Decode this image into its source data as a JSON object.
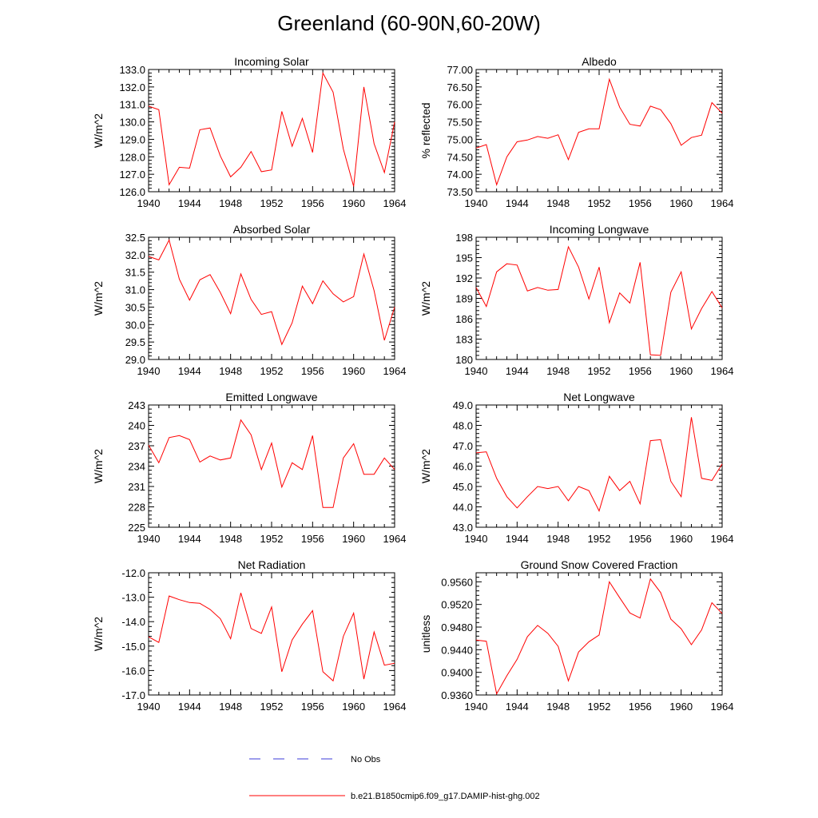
{
  "title": "Greenland (60-90N,60-20W)",
  "legend": [
    {
      "label": "No Obs",
      "color": "#3b3bd9",
      "style": "dashed"
    },
    {
      "label": "b.e21.B1850cmip6.f09_g17.DAMIP-hist-ghg.002",
      "color": "#ff0000",
      "style": "solid"
    }
  ],
  "chart_data": [
    {
      "type": "line",
      "title": "Incoming Solar",
      "ylabel": "W/m^2",
      "xlim": [
        1940,
        1964
      ],
      "ylim": [
        126,
        133
      ],
      "xticks": [
        "1940",
        "1944",
        "1948",
        "1952",
        "1956",
        "1960",
        "1964"
      ],
      "yticks": [
        "126.0",
        "127.0",
        "128.0",
        "129.0",
        "130.0",
        "131.0",
        "132.0",
        "133.0"
      ],
      "x": [
        1940,
        1941,
        1942,
        1943,
        1944,
        1945,
        1946,
        1947,
        1948,
        1949,
        1950,
        1951,
        1952,
        1953,
        1954,
        1955,
        1956,
        1957,
        1958,
        1959,
        1960,
        1961,
        1962,
        1963,
        1964
      ],
      "series": [
        {
          "values": [
            130.9,
            130.7,
            126.4,
            127.4,
            127.35,
            129.55,
            129.65,
            128.05,
            126.85,
            127.4,
            128.3,
            127.15,
            127.25,
            130.6,
            128.6,
            130.2,
            128.25,
            132.8,
            131.7,
            128.45,
            126.3,
            132.0,
            128.75,
            127.1,
            130.0
          ]
        }
      ]
    },
    {
      "type": "line",
      "title": "Albedo",
      "ylabel": "% reflected",
      "xlim": [
        1940,
        1964
      ],
      "ylim": [
        73.5,
        77
      ],
      "xticks": [
        "1940",
        "1944",
        "1948",
        "1952",
        "1956",
        "1960",
        "1964"
      ],
      "yticks": [
        "73.50",
        "74.00",
        "74.50",
        "75.00",
        "75.50",
        "76.00",
        "76.50",
        "77.00"
      ],
      "x": [
        1940,
        1941,
        1942,
        1943,
        1944,
        1945,
        1946,
        1947,
        1948,
        1949,
        1950,
        1951,
        1952,
        1953,
        1954,
        1955,
        1956,
        1957,
        1958,
        1959,
        1960,
        1961,
        1962,
        1963,
        1964
      ],
      "series": [
        {
          "values": [
            74.75,
            74.85,
            73.7,
            74.5,
            74.93,
            74.98,
            75.08,
            75.03,
            75.13,
            74.42,
            75.2,
            75.3,
            75.3,
            76.72,
            75.92,
            75.43,
            75.38,
            75.95,
            75.85,
            75.45,
            74.83,
            75.05,
            75.12,
            76.05,
            75.75
          ]
        }
      ]
    },
    {
      "type": "line",
      "title": "Absorbed Solar",
      "ylabel": "W/m^2",
      "xlim": [
        1940,
        1964
      ],
      "ylim": [
        29,
        32.5
      ],
      "xticks": [
        "1940",
        "1944",
        "1948",
        "1952",
        "1956",
        "1960",
        "1964"
      ],
      "yticks": [
        "29.0",
        "29.5",
        "30.0",
        "30.5",
        "31.0",
        "31.5",
        "32.0",
        "32.5"
      ],
      "x": [
        1940,
        1941,
        1942,
        1943,
        1944,
        1945,
        1946,
        1947,
        1948,
        1949,
        1950,
        1951,
        1952,
        1953,
        1954,
        1955,
        1956,
        1957,
        1958,
        1959,
        1960,
        1961,
        1962,
        1963,
        1964
      ],
      "series": [
        {
          "values": [
            31.95,
            31.85,
            32.42,
            31.3,
            30.7,
            31.28,
            31.43,
            30.92,
            30.31,
            31.45,
            30.72,
            30.29,
            30.37,
            29.43,
            30.05,
            31.1,
            30.6,
            31.25,
            30.88,
            30.65,
            30.8,
            32.02,
            30.97,
            29.55,
            30.5
          ]
        }
      ]
    },
    {
      "type": "line",
      "title": "Incoming Longwave",
      "ylabel": "W/m^2",
      "xlim": [
        1940,
        1964
      ],
      "ylim": [
        180,
        198
      ],
      "xticks": [
        "1940",
        "1944",
        "1948",
        "1952",
        "1956",
        "1960",
        "1964"
      ],
      "yticks": [
        "180",
        "183",
        "186",
        "189",
        "192",
        "195",
        "198"
      ],
      "x": [
        1940,
        1941,
        1942,
        1943,
        1944,
        1945,
        1946,
        1947,
        1948,
        1949,
        1950,
        1951,
        1952,
        1953,
        1954,
        1955,
        1956,
        1957,
        1958,
        1959,
        1960,
        1961,
        1962,
        1963,
        1964
      ],
      "series": [
        {
          "values": [
            190.6,
            187.8,
            192.9,
            194.1,
            193.9,
            190.1,
            190.6,
            190.2,
            190.3,
            196.6,
            193.6,
            188.9,
            193.6,
            185.4,
            189.8,
            188.3,
            194.3,
            180.7,
            180.6,
            189.9,
            192.9,
            184.5,
            187.5,
            190.0,
            187.6
          ]
        }
      ]
    },
    {
      "type": "line",
      "title": "Emitted Longwave",
      "ylabel": "W/m^2",
      "xlim": [
        1940,
        1964
      ],
      "ylim": [
        225,
        243
      ],
      "xticks": [
        "1940",
        "1944",
        "1948",
        "1952",
        "1956",
        "1960",
        "1964"
      ],
      "yticks": [
        "225",
        "228",
        "231",
        "234",
        "237",
        "240",
        "243"
      ],
      "x": [
        1940,
        1941,
        1942,
        1943,
        1944,
        1945,
        1946,
        1947,
        1948,
        1949,
        1950,
        1951,
        1952,
        1953,
        1954,
        1955,
        1956,
        1957,
        1958,
        1959,
        1960,
        1961,
        1962,
        1963,
        1964
      ],
      "series": [
        {
          "values": [
            237.1,
            234.5,
            238.2,
            238.5,
            237.9,
            234.6,
            235.5,
            234.9,
            235.2,
            240.8,
            238.6,
            233.5,
            237.4,
            230.9,
            234.5,
            233.5,
            238.5,
            227.9,
            227.9,
            235.2,
            237.3,
            232.8,
            232.8,
            235.2,
            233.5
          ]
        }
      ]
    },
    {
      "type": "line",
      "title": "Net Longwave",
      "ylabel": "W/m^2",
      "xlim": [
        1940,
        1964
      ],
      "ylim": [
        43,
        49
      ],
      "xticks": [
        "1940",
        "1944",
        "1948",
        "1952",
        "1956",
        "1960",
        "1964"
      ],
      "yticks": [
        "43.0",
        "44.0",
        "45.0",
        "46.0",
        "47.0",
        "48.0",
        "49.0"
      ],
      "x": [
        1940,
        1941,
        1942,
        1943,
        1944,
        1945,
        1946,
        1947,
        1948,
        1949,
        1950,
        1951,
        1952,
        1953,
        1954,
        1955,
        1956,
        1957,
        1958,
        1959,
        1960,
        1961,
        1962,
        1963,
        1964
      ],
      "series": [
        {
          "values": [
            46.65,
            46.7,
            45.4,
            44.5,
            43.95,
            44.5,
            45.0,
            44.9,
            45.0,
            44.3,
            45.0,
            44.8,
            43.8,
            45.5,
            44.8,
            45.25,
            44.15,
            47.25,
            47.3,
            45.25,
            44.5,
            48.4,
            45.4,
            45.3,
            46.1
          ]
        }
      ]
    },
    {
      "type": "line",
      "title": "Net Radiation",
      "ylabel": "W/m^2",
      "xlim": [
        1940,
        1964
      ],
      "ylim": [
        -17,
        -12
      ],
      "xticks": [
        "1940",
        "1944",
        "1948",
        "1952",
        "1956",
        "1960",
        "1964"
      ],
      "yticks": [
        "-17.0",
        "-16.0",
        "-15.0",
        "-14.0",
        "-13.0",
        "-12.0"
      ],
      "x": [
        1940,
        1941,
        1942,
        1943,
        1944,
        1945,
        1946,
        1947,
        1948,
        1949,
        1950,
        1951,
        1952,
        1953,
        1954,
        1955,
        1956,
        1957,
        1958,
        1959,
        1960,
        1961,
        1962,
        1963,
        1964
      ],
      "series": [
        {
          "values": [
            -14.62,
            -14.85,
            -12.95,
            -13.1,
            -13.22,
            -13.25,
            -13.5,
            -13.88,
            -14.7,
            -12.82,
            -14.28,
            -14.48,
            -13.4,
            -16.05,
            -14.75,
            -14.1,
            -13.55,
            -16.05,
            -16.42,
            -14.6,
            -13.65,
            -16.35,
            -14.42,
            -15.78,
            -15.7
          ]
        }
      ]
    },
    {
      "type": "line",
      "title": "Ground Snow Covered Fraction",
      "ylabel": "unitless",
      "xlim": [
        1940,
        1964
      ],
      "ylim": [
        0.936,
        0.9576
      ],
      "xticks": [
        "1940",
        "1944",
        "1948",
        "1952",
        "1956",
        "1960",
        "1964"
      ],
      "yticks": [
        "0.9360",
        "0.9400",
        "0.9440",
        "0.9480",
        "0.9520",
        "0.9560"
      ],
      "x": [
        1940,
        1941,
        1942,
        1943,
        1944,
        1945,
        1946,
        1947,
        1948,
        1949,
        1950,
        1951,
        1952,
        1953,
        1954,
        1955,
        1956,
        1957,
        1958,
        1959,
        1960,
        1961,
        1962,
        1963,
        1964
      ],
      "series": [
        {
          "values": [
            0.9457,
            0.9455,
            0.9362,
            0.9394,
            0.9423,
            0.9463,
            0.9483,
            0.9469,
            0.9446,
            0.9385,
            0.9436,
            0.9454,
            0.9466,
            0.956,
            0.9532,
            0.9505,
            0.9496,
            0.9565,
            0.9541,
            0.9494,
            0.9477,
            0.9449,
            0.9475,
            0.9523,
            0.9504
          ]
        }
      ]
    }
  ]
}
